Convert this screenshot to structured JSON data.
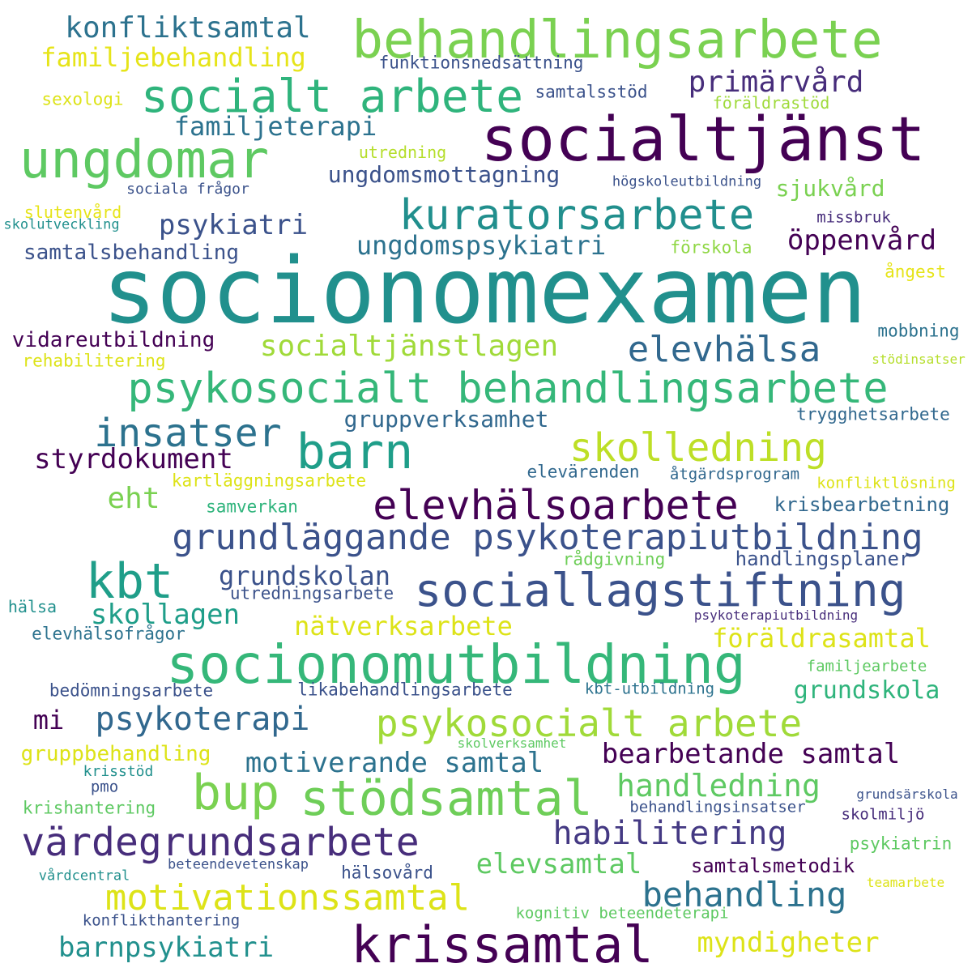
{
  "words": [
    {
      "text": "socionomexamen",
      "color": "#21908d"
    },
    {
      "text": "socialtjänst",
      "color": "#440154"
    },
    {
      "text": "behandlingsarbete",
      "color": "#7ad151"
    },
    {
      "text": "ungdomar",
      "color": "#5ec962"
    },
    {
      "text": "socialt arbete",
      "color": "#2fb47c"
    },
    {
      "text": "konfliktsamtal",
      "color": "#2c728e"
    },
    {
      "text": "familjebehandling",
      "color": "#e6e419"
    },
    {
      "text": "funktionsnedsättning",
      "color": "#3b528b"
    },
    {
      "text": "primärvård",
      "color": "#472d7b"
    },
    {
      "text": "samtalsstöd",
      "color": "#3b528b"
    },
    {
      "text": "sexologi",
      "color": "#dde318"
    },
    {
      "text": "föräldrastöd",
      "color": "#9fda3a"
    },
    {
      "text": "familjeterapi",
      "color": "#2c728e"
    },
    {
      "text": "utredning",
      "color": "#b5de2b"
    },
    {
      "text": "ungdomsmottagning",
      "color": "#3b528b"
    },
    {
      "text": "högskoleutbildning",
      "color": "#3b528b"
    },
    {
      "text": "sociala frågor",
      "color": "#3b528b"
    },
    {
      "text": "sjukvård",
      "color": "#7ad151"
    },
    {
      "text": "kuratorsarbete",
      "color": "#218f8d"
    },
    {
      "text": "slutenvård",
      "color": "#e6e419"
    },
    {
      "text": "skolutveckling",
      "color": "#21908d"
    },
    {
      "text": "psykiatri",
      "color": "#3b528b"
    },
    {
      "text": "missbruk",
      "color": "#472d7b"
    },
    {
      "text": "ungdomspsykiatri",
      "color": "#2c728e"
    },
    {
      "text": "öppenvård",
      "color": "#440154"
    },
    {
      "text": "samtalsbehandling",
      "color": "#3b528b"
    },
    {
      "text": "förskola",
      "color": "#8fd744"
    },
    {
      "text": "ångest",
      "color": "#e6e419"
    },
    {
      "text": "vidareutbildning",
      "color": "#440154"
    },
    {
      "text": "mobbning",
      "color": "#2c728e"
    },
    {
      "text": "rehabilitering",
      "color": "#dde318"
    },
    {
      "text": "stödinsatser",
      "color": "#b5de2b"
    },
    {
      "text": "socialtjänstlagen",
      "color": "#a0da39"
    },
    {
      "text": "elevhälsa",
      "color": "#31688e"
    },
    {
      "text": "psykosocialt behandlingsarbete",
      "color": "#35b779"
    },
    {
      "text": "trygghetsarbete",
      "color": "#31688e"
    },
    {
      "text": "gruppverksamhet",
      "color": "#31688e"
    },
    {
      "text": "insatser",
      "color": "#2c728e"
    },
    {
      "text": "barn",
      "color": "#1f9e89"
    },
    {
      "text": "skolledning",
      "color": "#bddf26"
    },
    {
      "text": "styrdokument",
      "color": "#440154"
    },
    {
      "text": "elevärenden",
      "color": "#31688e"
    },
    {
      "text": "åtgärdsprogram",
      "color": "#31688e"
    },
    {
      "text": "kartläggningsarbete",
      "color": "#dde318"
    },
    {
      "text": "konfliktlösning",
      "color": "#dde318"
    },
    {
      "text": "eht",
      "color": "#7ad151"
    },
    {
      "text": "elevhälsoarbete",
      "color": "#440154"
    },
    {
      "text": "samverkan",
      "color": "#2fb47c"
    },
    {
      "text": "krisbearbetning",
      "color": "#31688e"
    },
    {
      "text": "grundläggande psykoterapiutbildning",
      "color": "#3b528b"
    },
    {
      "text": "kbt",
      "color": "#1f9e89"
    },
    {
      "text": "rådgivning",
      "color": "#6ece58"
    },
    {
      "text": "handlingsplaner",
      "color": "#3b528b"
    },
    {
      "text": "grundskolan",
      "color": "#3b528b"
    },
    {
      "text": "sociallagstiftning",
      "color": "#3b528b"
    },
    {
      "text": "hälsa",
      "color": "#21908d"
    },
    {
      "text": "utredningsarbete",
      "color": "#3b528b"
    },
    {
      "text": "psykoterapiutbildning",
      "color": "#472d7b"
    },
    {
      "text": "skollagen",
      "color": "#1f9e89"
    },
    {
      "text": "nätverksarbete",
      "color": "#dde318"
    },
    {
      "text": "elevhälsofrågor",
      "color": "#2c728e"
    },
    {
      "text": "föräldrasamtal",
      "color": "#dde318"
    },
    {
      "text": "socionomutbildning",
      "color": "#35b779"
    },
    {
      "text": "familjearbete",
      "color": "#5ec962"
    },
    {
      "text": "bedömningsarbete",
      "color": "#3b528b"
    },
    {
      "text": "likabehandlingsarbete",
      "color": "#3b528b"
    },
    {
      "text": "kbt-utbildning",
      "color": "#2c728e"
    },
    {
      "text": "grundskola",
      "color": "#2fb47c"
    },
    {
      "text": "mi",
      "color": "#440154"
    },
    {
      "text": "psykoterapi",
      "color": "#31688e"
    },
    {
      "text": "psykosocialt arbete",
      "color": "#a0da39"
    },
    {
      "text": "skolverksamhet",
      "color": "#5ec962"
    },
    {
      "text": "gruppbehandling",
      "color": "#dde318"
    },
    {
      "text": "motiverande samtal",
      "color": "#2c728e"
    },
    {
      "text": "bearbetande samtal",
      "color": "#440154"
    },
    {
      "text": "krisstöd",
      "color": "#21908d"
    },
    {
      "text": "bup",
      "color": "#7ad151"
    },
    {
      "text": "stödsamtal",
      "color": "#6ece58"
    },
    {
      "text": "handledning",
      "color": "#5ec962"
    },
    {
      "text": "pmo",
      "color": "#3b528b"
    },
    {
      "text": "grundsärskola",
      "color": "#3b528b"
    },
    {
      "text": "krishantering",
      "color": "#5ec962"
    },
    {
      "text": "behandlingsinsatser",
      "color": "#3b528b"
    },
    {
      "text": "skolmiljö",
      "color": "#472d7b"
    },
    {
      "text": "värdegrundsarbete",
      "color": "#472d7b"
    },
    {
      "text": "habilitering",
      "color": "#443983"
    },
    {
      "text": "psykiatrin",
      "color": "#5ec962"
    },
    {
      "text": "elevsamtal",
      "color": "#5ec962"
    },
    {
      "text": "vårdcentral",
      "color": "#21908d"
    },
    {
      "text": "beteendevetenskap",
      "color": "#3b528b"
    },
    {
      "text": "hälsovård",
      "color": "#3b528b"
    },
    {
      "text": "samtalsmetodik",
      "color": "#440154"
    },
    {
      "text": "teamarbete",
      "color": "#dde318"
    },
    {
      "text": "motivationssamtal",
      "color": "#dde318"
    },
    {
      "text": "behandling",
      "color": "#2c728e"
    },
    {
      "text": "konflikthantering",
      "color": "#3b528b"
    },
    {
      "text": "kognitiv beteendeterapi",
      "color": "#5ec962"
    },
    {
      "text": "barnpsykiatri",
      "color": "#21908d"
    },
    {
      "text": "krissamtal",
      "color": "#440154"
    },
    {
      "text": "myndigheter",
      "color": "#dde318"
    }
  ]
}
